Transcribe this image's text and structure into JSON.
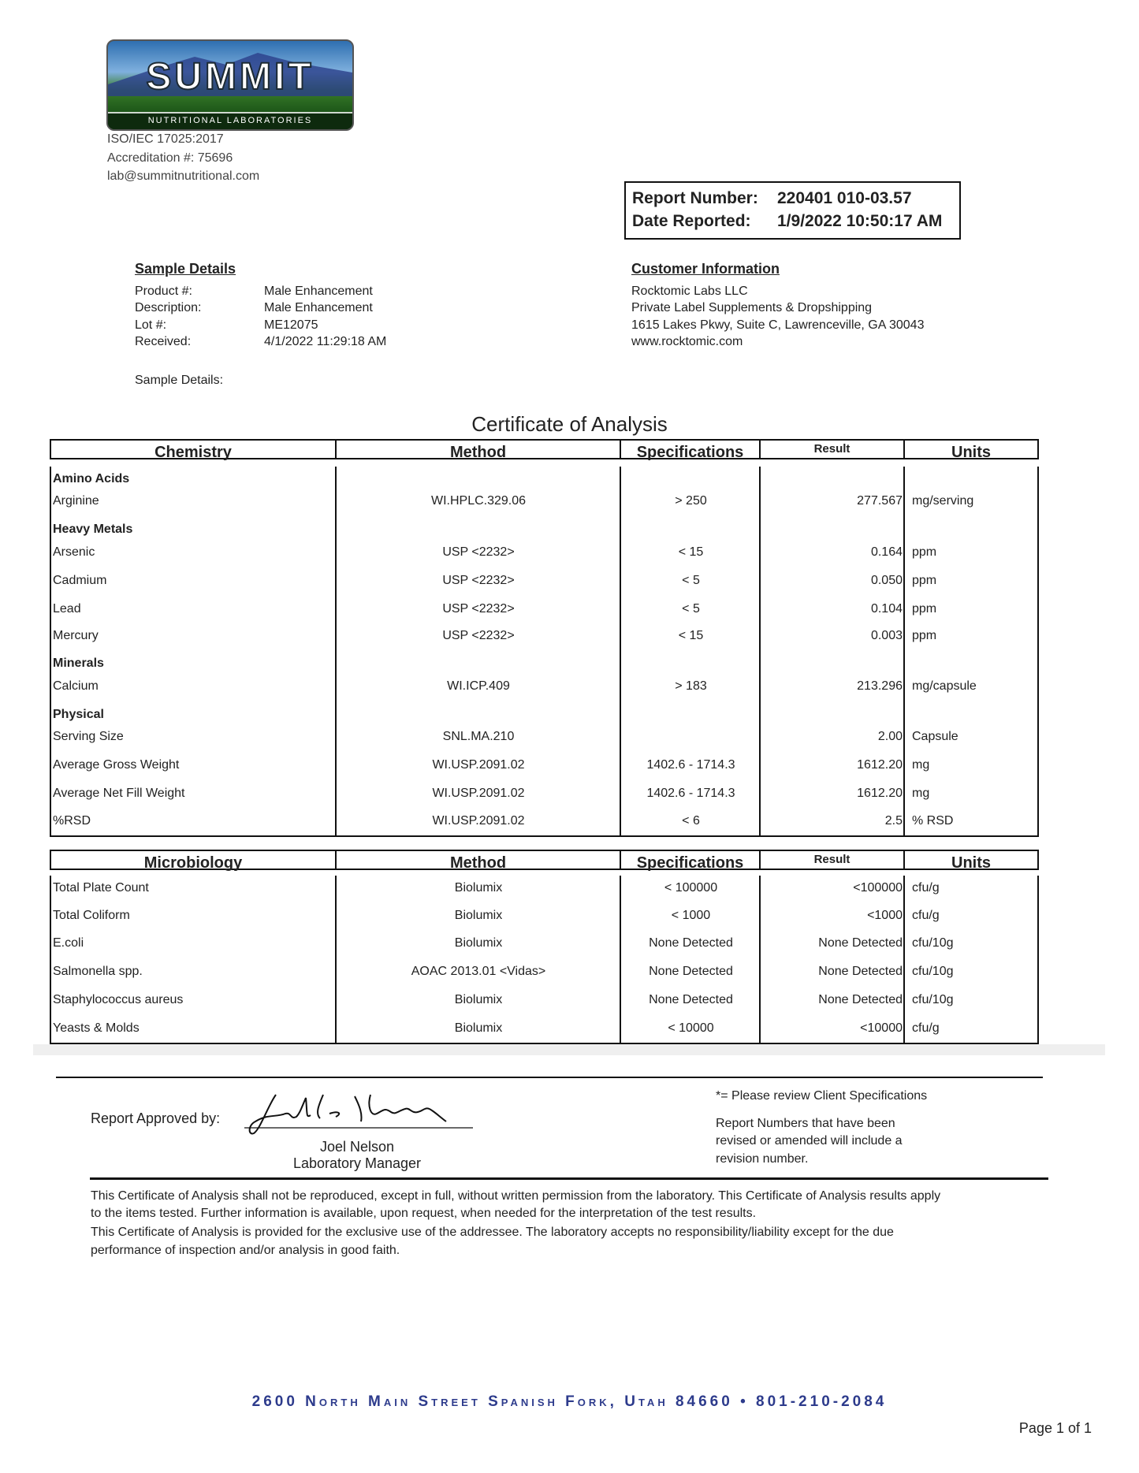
{
  "lab": {
    "logo_text": "SUMMIT",
    "logo_subtext": "NUTRITIONAL LABORATORIES",
    "iso": "ISO/IEC 17025:2017",
    "accreditation": "Accreditation #: 75696",
    "email": "lab@summitnutritional.com"
  },
  "report": {
    "number_label": "Report Number:",
    "number": "220401 010-03.57",
    "date_label": "Date Reported:",
    "date": "1/9/2022 10:50:17 AM"
  },
  "sample": {
    "heading": "Sample Details",
    "fields": [
      {
        "label": "Product #:",
        "value": "Male Enhancement"
      },
      {
        "label": "Description:",
        "value": "Male Enhancement"
      },
      {
        "label": "Lot #:",
        "value": "ME12075"
      },
      {
        "label": "Received:",
        "value": "4/1/2022 11:29:18 AM"
      }
    ],
    "details_label": "Sample Details:"
  },
  "customer": {
    "heading": "Customer Information",
    "lines": [
      "Rocktomic Labs LLC",
      "Private Label Supplements & Dropshipping",
      "1615 Lakes Pkwy, Suite C, Lawrenceville, GA 30043",
      "www.rocktomic.com"
    ]
  },
  "certificate_title": "Certificate of Analysis",
  "chemistry": {
    "headers": [
      "Chemistry",
      "Method",
      "Specifications",
      "Result",
      "Units"
    ],
    "rows": [
      {
        "category": "Amino Acids"
      },
      {
        "name": "Arginine",
        "method": "WI.HPLC.329.06",
        "spec": "> 250",
        "result": "277.567",
        "units": "mg/serving"
      },
      {
        "category": "Heavy Metals"
      },
      {
        "name": "Arsenic",
        "method": "USP <2232>",
        "spec": "< 15",
        "result": "0.164",
        "units": "ppm"
      },
      {
        "name": "Cadmium",
        "method": "USP <2232>",
        "spec": "< 5",
        "result": "0.050",
        "units": "ppm"
      },
      {
        "name": "Lead",
        "method": "USP <2232>",
        "spec": "< 5",
        "result": "0.104",
        "units": "ppm"
      },
      {
        "name": "Mercury",
        "method": "USP <2232>",
        "spec": "< 15",
        "result": "0.003",
        "units": "ppm"
      },
      {
        "category": "Minerals"
      },
      {
        "name": "Calcium",
        "method": "WI.ICP.409",
        "spec": "> 183",
        "result": "213.296",
        "units": "mg/capsule"
      },
      {
        "category": "Physical"
      },
      {
        "name": "Serving Size",
        "method": "SNL.MA.210",
        "spec": "",
        "result": "2.00",
        "units": "Capsule"
      },
      {
        "name": "Average Gross Weight",
        "method": "WI.USP.2091.02",
        "spec": "1402.6 - 1714.3",
        "result": "1612.20",
        "units": "mg"
      },
      {
        "name": "Average Net Fill Weight",
        "method": "WI.USP.2091.02",
        "spec": "1402.6 - 1714.3",
        "result": "1612.20",
        "units": "mg"
      },
      {
        "name": "%RSD",
        "method": "WI.USP.2091.02",
        "spec": "< 6",
        "result": "2.5",
        "units": "% RSD"
      }
    ]
  },
  "microbiology": {
    "headers": [
      "Microbiology",
      "Method",
      "Specifications",
      "Result",
      "Units"
    ],
    "rows": [
      {
        "name": "Total Plate Count",
        "method": "Biolumix",
        "spec": "< 100000",
        "result": "<100000",
        "units": "cfu/g"
      },
      {
        "name": "Total Coliform",
        "method": "Biolumix",
        "spec": "< 1000",
        "result": "<1000",
        "units": "cfu/g"
      },
      {
        "name": "E.coli",
        "method": "Biolumix",
        "spec": "None Detected",
        "result": "None Detected",
        "units": "cfu/10g"
      },
      {
        "name": "Salmonella spp.",
        "method": "AOAC 2013.01 <Vidas>",
        "spec": "None Detected",
        "result": "None Detected",
        "units": "cfu/10g"
      },
      {
        "name": "Staphylococcus aureus",
        "method": "Biolumix",
        "spec": "None Detected",
        "result": "None Detected",
        "units": "cfu/10g"
      },
      {
        "name": "Yeasts & Molds",
        "method": "Biolumix",
        "spec": "< 10000",
        "result": "<10000",
        "units": "cfu/g"
      }
    ]
  },
  "approval": {
    "label": "Report Approved by:",
    "signature": "Joel L Nelson",
    "name": "Joel Nelson",
    "title": "Laboratory Manager",
    "note1": "*= Please review Client Specifications",
    "note2": [
      "Report Numbers that have been",
      "revised or amended will include a",
      "revision number."
    ]
  },
  "disclaimer": [
    "This Certificate of Analysis shall not be reproduced, except in full, without written permission from the laboratory. This Certificate of Analysis results apply",
    "to the items tested. Further information is available, upon request, when needed for the interpretation of the test results.",
    "This Certificate of Analysis is provided for the exclusive use of the addressee. The laboratory accepts no responsibility/liability except for the due",
    "performance of inspection and/or analysis in good faith."
  ],
  "footer": {
    "address": "2600 North Main Street Spanish Fork, Utah  84660 • 801-210-2084",
    "page": "Page 1 of 1"
  },
  "colors": {
    "address": "#2d3b8c",
    "logo_green": "#2f6e22",
    "logo_blue": "#2f6fb0"
  }
}
